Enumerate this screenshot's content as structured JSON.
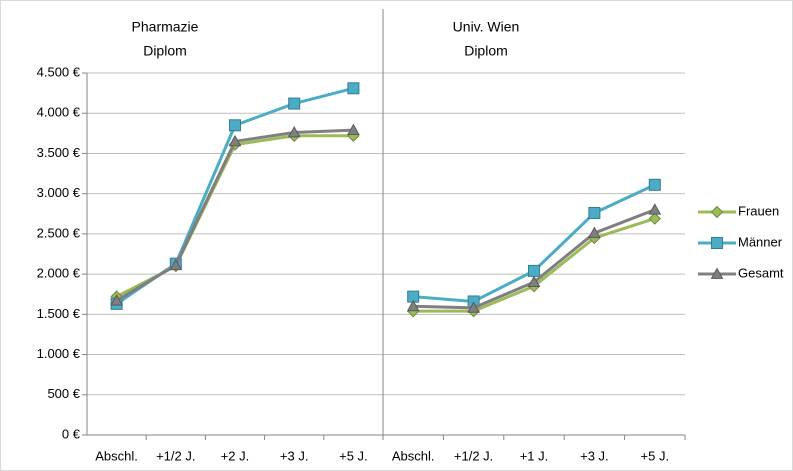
{
  "chart_data": [
    {
      "type": "line",
      "title": [
        "Pharmazie",
        "Diplom"
      ],
      "categories": [
        "Abschl.",
        "+1/2 J.",
        "+2 J.",
        "+3 J.",
        "+5 J."
      ],
      "series": [
        {
          "name": "Frauen",
          "color": "#9bbb59",
          "marker": "diamond",
          "values": [
            1720,
            2100,
            3610,
            3720,
            3720
          ]
        },
        {
          "name": "Männer",
          "color": "#4bacc6",
          "marker": "square",
          "values": [
            1630,
            2130,
            3850,
            4120,
            4310
          ]
        },
        {
          "name": "Gesamt",
          "color": "#7f7f7f",
          "marker": "triangle",
          "values": [
            1670,
            2110,
            3650,
            3760,
            3790
          ]
        }
      ],
      "ylim": [
        0,
        4500
      ],
      "yticks": [
        {
          "value": 0,
          "label": "0 €"
        },
        {
          "value": 500,
          "label": "500 €"
        },
        {
          "value": 1000,
          "label": "1.000 €"
        },
        {
          "value": 1500,
          "label": "1.500 €"
        },
        {
          "value": 2000,
          "label": "2.000 €"
        },
        {
          "value": 2500,
          "label": "2.500 €"
        },
        {
          "value": 3000,
          "label": "3.000 €"
        },
        {
          "value": 3500,
          "label": "3.500 €"
        },
        {
          "value": 4000,
          "label": "4.000 €"
        },
        {
          "value": 4500,
          "label": "4.500 €"
        }
      ],
      "grid": true
    },
    {
      "type": "line",
      "title": [
        "Univ. Wien",
        "Diplom"
      ],
      "categories": [
        "Abschl.",
        "+1/2 J.",
        "+1 J.",
        "+3 J.",
        "+5 J."
      ],
      "series": [
        {
          "name": "Frauen",
          "color": "#9bbb59",
          "marker": "diamond",
          "values": [
            1540,
            1540,
            1850,
            2450,
            2690
          ]
        },
        {
          "name": "Männer",
          "color": "#4bacc6",
          "marker": "square",
          "values": [
            1720,
            1660,
            2040,
            2760,
            3110
          ]
        },
        {
          "name": "Gesamt",
          "color": "#7f7f7f",
          "marker": "triangle",
          "values": [
            1600,
            1580,
            1900,
            2510,
            2800
          ]
        }
      ],
      "ylim": [
        0,
        4500
      ],
      "legend": "right"
    }
  ]
}
